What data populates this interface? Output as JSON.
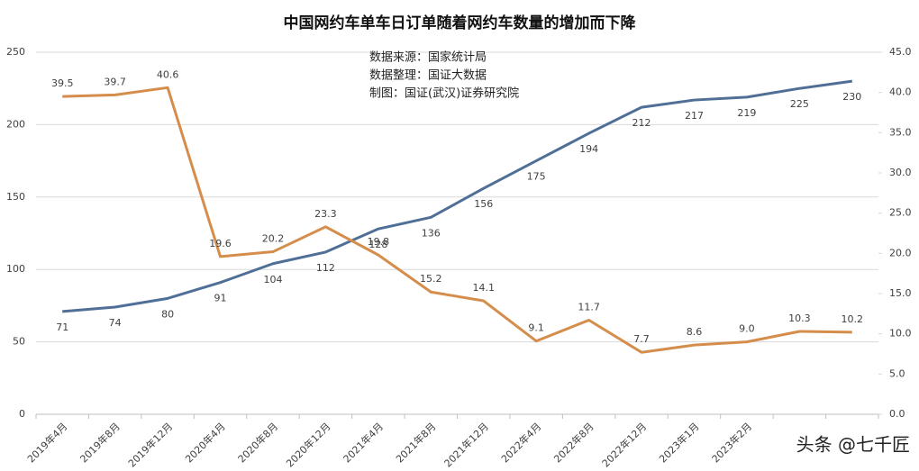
{
  "chart_data": {
    "type": "line",
    "title": "中国网约车单车日订单随着网约车数量的增加而下降",
    "annotations": [
      "数据来源：国家统计局",
      "数据整理：国证大数据",
      "制图：国证(武汉)证券研究院"
    ],
    "watermark": "头条 @七千匠",
    "categories": [
      "2019年4月",
      "2019年8月",
      "2019年12月",
      "2020年4月",
      "2020年8月",
      "2020年12月",
      "2021年4月",
      "2021年8月",
      "2021年12月",
      "2022年4月",
      "2022年8月",
      "2022年12月",
      "2023年1月",
      "2023年2月",
      null,
      null
    ],
    "series": [
      {
        "color": "#4f6f97",
        "values": [
          71,
          74,
          80,
          91,
          104,
          112,
          128,
          136,
          156,
          175,
          194,
          212,
          217,
          219,
          225,
          230
        ]
      },
      {
        "color": "#d58d4c",
        "axis": "y2",
        "values": [
          39.5,
          39.7,
          40.6,
          19.6,
          20.2,
          23.3,
          19.8,
          15.2,
          14.1,
          9.1,
          11.7,
          7.7,
          8.6,
          9.0,
          10.3,
          10.2
        ],
        "value_labels": [
          "39.5",
          "39.7",
          "40.6",
          "19.6",
          "20.2",
          "23.3",
          "19.8",
          "15.2",
          "14.1",
          "9.1",
          "11.7",
          "7.7",
          "8.6",
          "9.0",
          "10.3",
          "10.2"
        ]
      }
    ],
    "ylim": [
      0,
      250
    ],
    "yticks": [
      0,
      50,
      100,
      150,
      200,
      250
    ],
    "y2lim": [
      0,
      45
    ],
    "y2ticks": [
      {
        "value": 0,
        "label": "0.0"
      },
      {
        "value": 5,
        "label": "5.0"
      },
      {
        "value": 10,
        "label": "10.0"
      },
      {
        "value": 15,
        "label": "15.0"
      },
      {
        "value": 20,
        "label": "20.0"
      },
      {
        "value": 25,
        "label": "25.0"
      },
      {
        "value": 30,
        "label": "30.0"
      },
      {
        "value": 35,
        "label": "35.0"
      },
      {
        "value": 40,
        "label": "40.0"
      },
      {
        "value": 45,
        "label": "45.0"
      }
    ],
    "grid": true
  }
}
